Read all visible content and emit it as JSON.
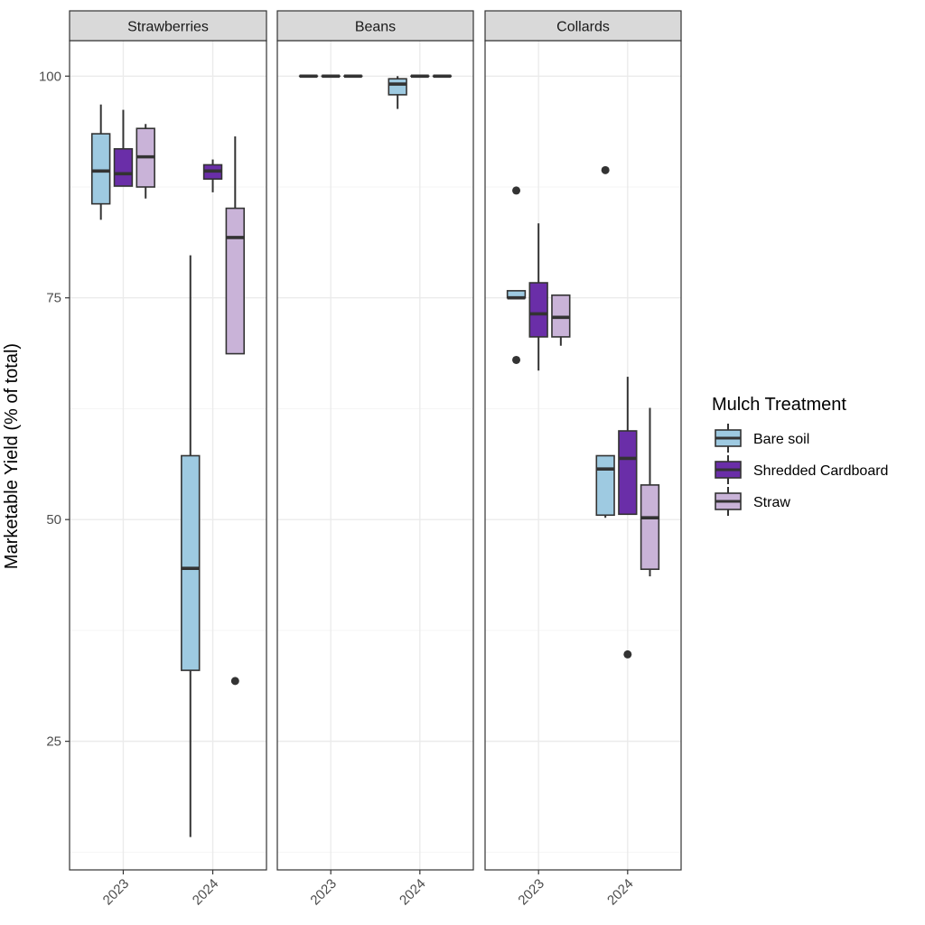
{
  "chart_data": {
    "type": "boxplot",
    "ylabel": "Marketable Yield (% of total)",
    "xlabel": "",
    "ylim": [
      10.5,
      104
    ],
    "yticks": [
      25,
      50,
      75,
      100
    ],
    "categories": [
      "2023",
      "2024"
    ],
    "grid": true,
    "legend": {
      "title": "Mulch Treatment",
      "position": "right",
      "entries": [
        {
          "name": "Bare soil",
          "color": "#9ecae1"
        },
        {
          "name": "Shredded Cardboard",
          "color": "#6a2ea8"
        },
        {
          "name": "Straw",
          "color": "#c9b3d8"
        }
      ]
    },
    "colors": {
      "box_border": "#333333",
      "panel_border": "#333333",
      "strip_fill": "#d9d9d9",
      "grid_major": "#ebebeb",
      "grid_minor": "#f5f5f5"
    },
    "panels": [
      {
        "title": "Strawberries",
        "boxes": [
          {
            "year": "2023",
            "treatment": "Bare soil",
            "lower": 83.8,
            "q1": 85.6,
            "median": 89.3,
            "q3": 93.5,
            "upper": 96.8,
            "outliers": []
          },
          {
            "year": "2023",
            "treatment": "Shredded Cardboard",
            "lower": 87.6,
            "q1": 87.6,
            "median": 89.0,
            "q3": 91.8,
            "upper": 96.2,
            "outliers": []
          },
          {
            "year": "2023",
            "treatment": "Straw",
            "lower": 86.2,
            "q1": 87.5,
            "median": 90.9,
            "q3": 94.1,
            "upper": 94.6,
            "outliers": []
          },
          {
            "year": "2024",
            "treatment": "Bare soil",
            "lower": 14.2,
            "q1": 33.0,
            "median": 44.5,
            "q3": 57.2,
            "upper": 79.8,
            "outliers": []
          },
          {
            "year": "2024",
            "treatment": "Shredded Cardboard",
            "lower": 86.9,
            "q1": 88.4,
            "median": 89.3,
            "q3": 90.0,
            "upper": 90.6,
            "outliers": []
          },
          {
            "year": "2024",
            "treatment": "Straw",
            "lower": 68.7,
            "q1": 68.7,
            "median": 81.8,
            "q3": 85.1,
            "upper": 93.2,
            "outliers": [
              31.8
            ]
          }
        ]
      },
      {
        "title": "Beans",
        "boxes": [
          {
            "year": "2023",
            "treatment": "Bare soil",
            "lower": 100,
            "q1": 100,
            "median": 100,
            "q3": 100,
            "upper": 100,
            "outliers": []
          },
          {
            "year": "2023",
            "treatment": "Shredded Cardboard",
            "lower": 100,
            "q1": 100,
            "median": 100,
            "q3": 100,
            "upper": 100,
            "outliers": []
          },
          {
            "year": "2023",
            "treatment": "Straw",
            "lower": 100,
            "q1": 100,
            "median": 100,
            "q3": 100,
            "upper": 100,
            "outliers": []
          },
          {
            "year": "2024",
            "treatment": "Bare soil",
            "lower": 96.3,
            "q1": 97.9,
            "median": 99.1,
            "q3": 99.7,
            "upper": 100,
            "outliers": []
          },
          {
            "year": "2024",
            "treatment": "Shredded Cardboard",
            "lower": 100,
            "q1": 100,
            "median": 100,
            "q3": 100,
            "upper": 100,
            "outliers": []
          },
          {
            "year": "2024",
            "treatment": "Straw",
            "lower": 100,
            "q1": 100,
            "median": 100,
            "q3": 100,
            "upper": 100,
            "outliers": []
          }
        ]
      },
      {
        "title": "Collards",
        "boxes": [
          {
            "year": "2023",
            "treatment": "Bare soil",
            "lower": 75.0,
            "q1": 75.0,
            "median": 75.0,
            "q3": 75.8,
            "upper": 75.8,
            "outliers": [
              87.1,
              68.0
            ]
          },
          {
            "year": "2023",
            "treatment": "Shredded Cardboard",
            "lower": 66.8,
            "q1": 70.6,
            "median": 73.2,
            "q3": 76.7,
            "upper": 83.4,
            "outliers": []
          },
          {
            "year": "2023",
            "treatment": "Straw",
            "lower": 69.6,
            "q1": 70.6,
            "median": 72.8,
            "q3": 75.3,
            "upper": 75.3,
            "outliers": []
          },
          {
            "year": "2024",
            "treatment": "Bare soil",
            "lower": 50.2,
            "q1": 50.5,
            "median": 55.7,
            "q3": 57.2,
            "upper": 57.2,
            "outliers": [
              89.4
            ]
          },
          {
            "year": "2024",
            "treatment": "Shredded Cardboard",
            "lower": 50.6,
            "q1": 50.6,
            "median": 56.9,
            "q3": 60.0,
            "upper": 66.1,
            "outliers": [
              34.8
            ]
          },
          {
            "year": "2024",
            "treatment": "Straw",
            "lower": 43.6,
            "q1": 44.4,
            "median": 50.2,
            "q3": 53.9,
            "upper": 62.6,
            "outliers": []
          }
        ]
      }
    ]
  }
}
